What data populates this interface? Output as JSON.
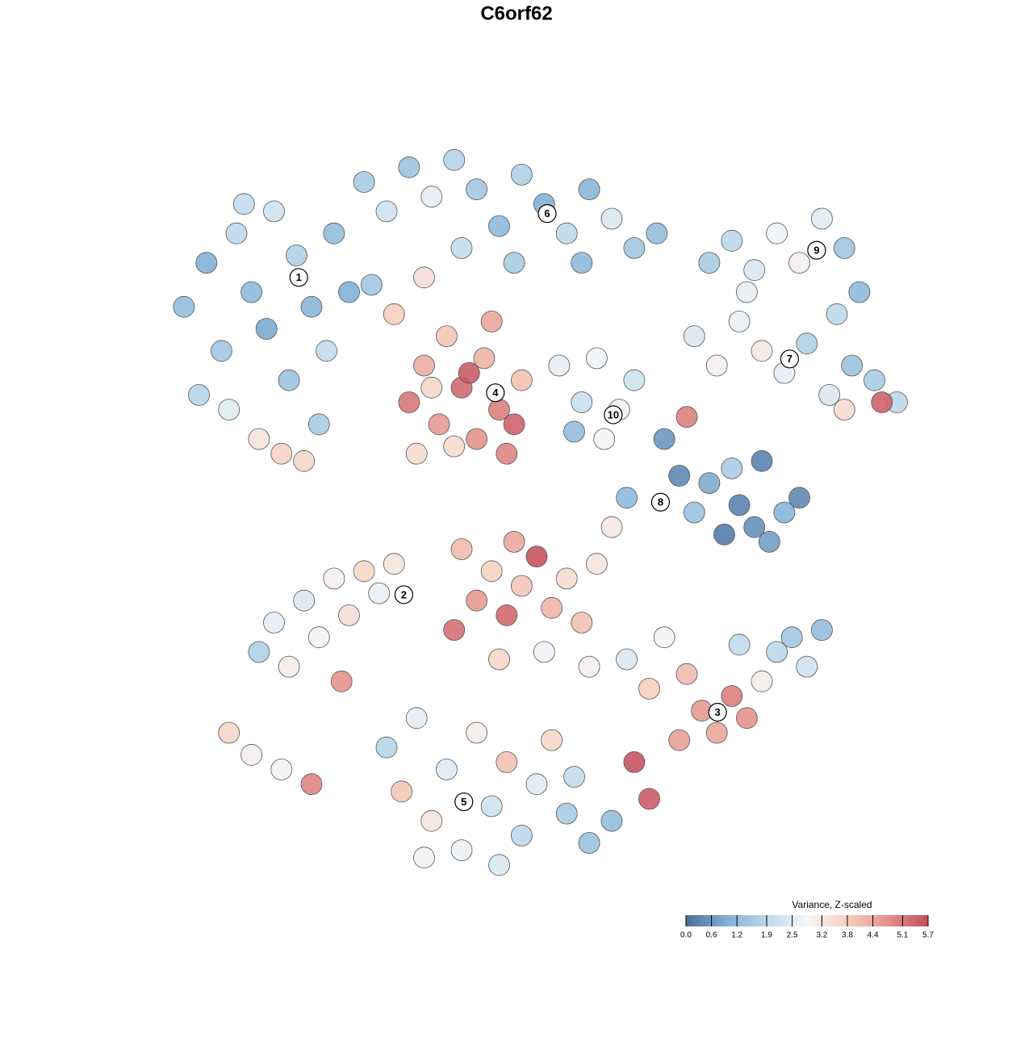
{
  "chart_data": {
    "type": "scatter",
    "title": "C6orf62",
    "xlim": [
      0,
      100
    ],
    "ylim": [
      0,
      100
    ],
    "points": {
      "x": [
        3,
        6,
        8,
        10,
        12,
        14,
        15,
        17,
        18,
        20,
        21,
        23,
        22,
        13,
        16,
        19,
        5,
        9,
        25,
        11,
        27,
        30,
        33,
        36,
        39,
        42,
        45,
        48,
        51,
        54,
        57,
        60,
        63,
        66,
        40,
        47,
        56,
        35,
        31,
        28,
        33,
        35,
        37,
        38,
        40,
        42,
        43,
        45,
        46,
        48,
        39,
        44,
        41,
        36,
        47,
        34,
        73,
        76,
        79,
        82,
        85,
        88,
        91,
        93,
        90,
        78,
        71,
        74,
        77,
        80,
        83,
        86,
        89,
        92,
        95,
        98,
        96,
        91,
        53,
        56,
        58,
        61,
        63,
        59,
        55,
        67,
        69,
        71,
        73,
        75,
        77,
        79,
        81,
        83,
        85,
        70,
        62,
        76,
        80,
        13,
        15,
        17,
        19,
        21,
        23,
        25,
        27,
        29,
        31,
        24,
        9,
        12,
        16,
        20,
        40,
        42,
        44,
        46,
        48,
        50,
        52,
        54,
        56,
        58,
        39,
        45,
        51,
        57,
        60,
        47,
        62,
        65,
        67,
        70,
        72,
        74,
        76,
        78,
        80,
        82,
        84,
        86,
        88,
        77,
        69,
        63,
        65,
        30,
        32,
        34,
        36,
        38,
        40,
        42,
        44,
        46,
        48,
        50,
        52,
        54,
        57,
        60,
        35,
        45,
        55
      ],
      "y": [
        78,
        84,
        72,
        88,
        80,
        75,
        91,
        68,
        85,
        78,
        62,
        88,
        72,
        60,
        58,
        57,
        66,
        64,
        80,
        92,
        95,
        91,
        97,
        93,
        98,
        94,
        89,
        96,
        92,
        88,
        94,
        90,
        86,
        88,
        86,
        84,
        84,
        82,
        77,
        81,
        65,
        70,
        62,
        74,
        67,
        60,
        71,
        64,
        58,
        68,
        59,
        76,
        69,
        67,
        62,
        58,
        84,
        87,
        83,
        88,
        84,
        90,
        86,
        80,
        77,
        80,
        74,
        70,
        76,
        72,
        69,
        73,
        66,
        70,
        68,
        65,
        65,
        64,
        70,
        65,
        71,
        64,
        68,
        60,
        61,
        60,
        55,
        50,
        54,
        47,
        51,
        48,
        46,
        50,
        52,
        63,
        52,
        56,
        57,
        31,
        35,
        29,
        38,
        33,
        41,
        36,
        42,
        39,
        43,
        27,
        20,
        17,
        15,
        13,
        45,
        38,
        42,
        36,
        40,
        44,
        37,
        41,
        35,
        43,
        34,
        30,
        31,
        29,
        48,
        46,
        30,
        26,
        33,
        28,
        23,
        20,
        25,
        22,
        27,
        31,
        33,
        29,
        34,
        32,
        19,
        16,
        11,
        18,
        12,
        22,
        8,
        15,
        4,
        20,
        10,
        16,
        6,
        13,
        19,
        9,
        5,
        8,
        3,
        2,
        14
      ],
      "values": [
        1.3,
        1.0,
        1.5,
        1.9,
        1.2,
        0.9,
        2.2,
        1.4,
        1.7,
        1.1,
        1.6,
        1.3,
        2.0,
        3.3,
        3.7,
        3.6,
        1.8,
        2.5,
        1.0,
        2.0,
        1.6,
        2.2,
        1.4,
        2.6,
        1.8,
        1.5,
        1.2,
        1.7,
        1.0,
        1.9,
        1.1,
        2.4,
        1.5,
        1.3,
        2.0,
        1.6,
        1.2,
        3.4,
        3.8,
        1.5,
        5.1,
        4.3,
        4.6,
        3.9,
        5.3,
        4.7,
        4.2,
        5.0,
        4.9,
        4.0,
        3.5,
        4.4,
        5.5,
        3.6,
        5.4,
        3.5,
        1.6,
        1.9,
        2.4,
        2.8,
        3.0,
        2.5,
        1.5,
        1.2,
        1.9,
        2.6,
        2.4,
        3.0,
        2.7,
        3.2,
        2.6,
        1.7,
        2.4,
        1.4,
        1.6,
        1.9,
        5.4,
        3.5,
        2.6,
        2.1,
        2.8,
        3.0,
        2.2,
        2.9,
        1.3,
        0.6,
        0.4,
        1.4,
        0.9,
        0.2,
        0.3,
        0.5,
        0.7,
        1.1,
        0.4,
        5.0,
        1.2,
        1.6,
        0.3,
        1.7,
        2.6,
        3.1,
        2.4,
        2.9,
        3.0,
        3.4,
        3.6,
        2.7,
        3.3,
        4.7,
        3.6,
        3.0,
        2.9,
        4.9,
        4.1,
        4.6,
        3.7,
        5.3,
        3.9,
        5.6,
        4.2,
        3.5,
        4.0,
        3.3,
        5.2,
        3.6,
        2.8,
        3.0,
        3.2,
        4.4,
        2.4,
        3.8,
        2.9,
        4.1,
        4.6,
        4.4,
        5.0,
        4.7,
        3.1,
        1.9,
        1.5,
        2.2,
        1.3,
        2.0,
        4.5,
        5.6,
        5.5,
        1.8,
        3.9,
        2.6,
        3.3,
        2.5,
        2.7,
        3.1,
        2.2,
        4.0,
        1.9,
        2.5,
        3.6,
        1.6,
        1.4,
        1.3,
        2.9,
        2.4,
        2.0
      ]
    },
    "clusters": [
      {
        "label": "1",
        "x": 18.3,
        "y": 82.0
      },
      {
        "label": "2",
        "x": 32.3,
        "y": 38.8
      },
      {
        "label": "3",
        "x": 74.1,
        "y": 22.8
      },
      {
        "label": "4",
        "x": 44.5,
        "y": 66.3
      },
      {
        "label": "5",
        "x": 40.3,
        "y": 10.6
      },
      {
        "label": "6",
        "x": 51.4,
        "y": 90.7
      },
      {
        "label": "7",
        "x": 83.7,
        "y": 70.9
      },
      {
        "label": "8",
        "x": 66.5,
        "y": 51.4
      },
      {
        "label": "9",
        "x": 87.3,
        "y": 85.7
      },
      {
        "label": "10",
        "x": 60.2,
        "y": 63.3
      }
    ],
    "colorbar": {
      "label": "Variance, Z-scaled",
      "lim": [
        0,
        5.7
      ],
      "ticks": [
        {
          "value": 0,
          "label": "0.0"
        },
        0.6,
        1.2,
        1.9,
        2.5,
        3.2,
        3.8,
        4.4,
        5.1,
        5.7
      ],
      "colors": [
        "#4a6f9c",
        "#7fafd5",
        "#bcd9ea",
        "#f4f6f8",
        "#f6cfbd",
        "#e3908a",
        "#c44e5c"
      ]
    }
  }
}
